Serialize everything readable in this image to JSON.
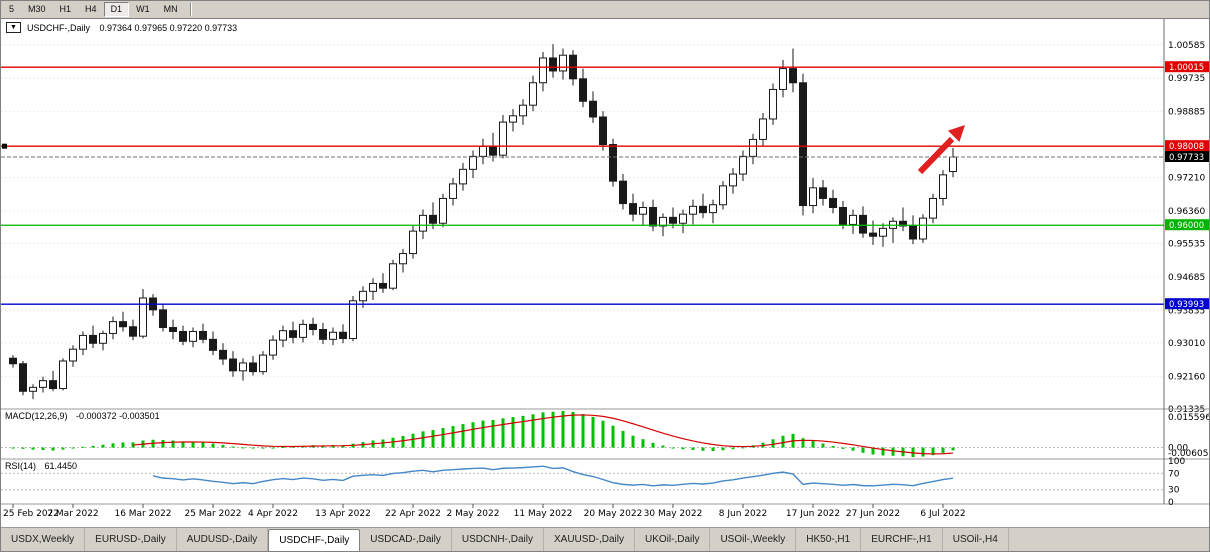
{
  "toolbar": {
    "periods": [
      {
        "label": "5",
        "active": false
      },
      {
        "label": "M30",
        "active": false
      },
      {
        "label": "H1",
        "active": false
      },
      {
        "label": "H4",
        "active": false
      },
      {
        "label": "D1",
        "active": true
      },
      {
        "label": "W1",
        "active": false
      },
      {
        "label": "MN",
        "active": false
      }
    ]
  },
  "chart": {
    "symbol_button": "▼",
    "title": "USDCHF-,Daily",
    "ohlc": "0.97364 0.97965 0.97220 0.97733",
    "price_axis_ticks": [
      "1.00585",
      "0.99735",
      "0.98885",
      "0.97210",
      "0.96360",
      "0.95535",
      "0.94685",
      "0.93835",
      "0.93010",
      "0.92160",
      "0.91335"
    ],
    "hlines": [
      {
        "price": 1.00015,
        "label": "1.00015",
        "color": "#e00000"
      },
      {
        "price": 0.98008,
        "label": "0.98008",
        "color": "#e00000"
      },
      {
        "price": 0.96,
        "label": "0.96000",
        "color": "#00b400"
      },
      {
        "price": 0.93993,
        "label": "0.93993",
        "color": "#0000d0"
      }
    ],
    "current_price": {
      "value": 0.97733,
      "label": "0.97733",
      "box_color": "#000000"
    },
    "trend_arrow_color": "#e02020",
    "view": {
      "price_top": 1.0124,
      "price_bottom": 0.9133
    }
  },
  "chart_data": {
    "type": "candlestick",
    "symbol": "USDCHF-",
    "timeframe": "Daily",
    "ohlc_current": {
      "open": "0.97364",
      "high": "0.97965",
      "low": "0.97220",
      "close": "0.97733"
    },
    "colors": {
      "bull": "#ffffff",
      "bear": "#1a1a1a",
      "outline": "#1a1a1a"
    },
    "candles": [
      [
        0.9262,
        0.927,
        0.9238,
        0.9248
      ],
      [
        0.9248,
        0.9255,
        0.9168,
        0.9178
      ],
      [
        0.9178,
        0.9196,
        0.9158,
        0.9188
      ],
      [
        0.9188,
        0.9215,
        0.9175,
        0.9205
      ],
      [
        0.9205,
        0.923,
        0.9178,
        0.9185
      ],
      [
        0.9185,
        0.9262,
        0.918,
        0.9255
      ],
      [
        0.9255,
        0.9295,
        0.924,
        0.9285
      ],
      [
        0.9285,
        0.933,
        0.927,
        0.932
      ],
      [
        0.932,
        0.9345,
        0.9288,
        0.93
      ],
      [
        0.93,
        0.9332,
        0.9282,
        0.9325
      ],
      [
        0.9325,
        0.9368,
        0.931,
        0.9355
      ],
      [
        0.9355,
        0.938,
        0.933,
        0.9342
      ],
      [
        0.9342,
        0.936,
        0.9308,
        0.9318
      ],
      [
        0.9318,
        0.9438,
        0.9312,
        0.9415
      ],
      [
        0.9415,
        0.9425,
        0.937,
        0.9385
      ],
      [
        0.9385,
        0.94,
        0.933,
        0.934
      ],
      [
        0.934,
        0.936,
        0.931,
        0.933
      ],
      [
        0.933,
        0.9345,
        0.9295,
        0.9305
      ],
      [
        0.9305,
        0.934,
        0.929,
        0.933
      ],
      [
        0.933,
        0.935,
        0.93,
        0.931
      ],
      [
        0.931,
        0.933,
        0.927,
        0.9282
      ],
      [
        0.9282,
        0.93,
        0.9245,
        0.926
      ],
      [
        0.926,
        0.928,
        0.9215,
        0.923
      ],
      [
        0.923,
        0.9262,
        0.9205,
        0.925
      ],
      [
        0.925,
        0.9268,
        0.9218,
        0.9228
      ],
      [
        0.9228,
        0.928,
        0.922,
        0.927
      ],
      [
        0.927,
        0.932,
        0.9258,
        0.9308
      ],
      [
        0.9308,
        0.9345,
        0.929,
        0.9332
      ],
      [
        0.9332,
        0.9355,
        0.93,
        0.9315
      ],
      [
        0.9315,
        0.936,
        0.9302,
        0.9348
      ],
      [
        0.9348,
        0.9365,
        0.932,
        0.9335
      ],
      [
        0.9335,
        0.9352,
        0.9298,
        0.931
      ],
      [
        0.931,
        0.934,
        0.9295,
        0.9328
      ],
      [
        0.9328,
        0.9348,
        0.93,
        0.9312
      ],
      [
        0.9312,
        0.942,
        0.9305,
        0.9408
      ],
      [
        0.9408,
        0.9445,
        0.939,
        0.9432
      ],
      [
        0.9432,
        0.9465,
        0.941,
        0.9452
      ],
      [
        0.9452,
        0.9478,
        0.9428,
        0.944
      ],
      [
        0.944,
        0.9512,
        0.9435,
        0.9502
      ],
      [
        0.9502,
        0.954,
        0.948,
        0.9528
      ],
      [
        0.9528,
        0.9598,
        0.9515,
        0.9585
      ],
      [
        0.9585,
        0.964,
        0.9565,
        0.9625
      ],
      [
        0.9625,
        0.9658,
        0.959,
        0.9605
      ],
      [
        0.9605,
        0.968,
        0.9595,
        0.9668
      ],
      [
        0.9668,
        0.972,
        0.965,
        0.9705
      ],
      [
        0.9705,
        0.9758,
        0.9688,
        0.9742
      ],
      [
        0.9742,
        0.979,
        0.972,
        0.9775
      ],
      [
        0.9775,
        0.982,
        0.9755,
        0.98
      ],
      [
        0.98,
        0.9835,
        0.9762,
        0.9778
      ],
      [
        0.9778,
        0.988,
        0.977,
        0.9862
      ],
      [
        0.9862,
        0.9895,
        0.9838,
        0.9878
      ],
      [
        0.9878,
        0.992,
        0.9855,
        0.9905
      ],
      [
        0.9905,
        0.998,
        0.989,
        0.9962
      ],
      [
        0.9962,
        1.004,
        0.994,
        1.0025
      ],
      [
        1.0025,
        1.006,
        0.9975,
        0.9992
      ],
      [
        0.9992,
        1.0049,
        0.997,
        1.0032
      ],
      [
        1.0032,
        1.0045,
        0.9955,
        0.9972
      ],
      [
        0.9972,
        0.9998,
        0.99,
        0.9915
      ],
      [
        0.9915,
        0.994,
        0.986,
        0.9875
      ],
      [
        0.9875,
        0.989,
        0.979,
        0.9805
      ],
      [
        0.9805,
        0.982,
        0.9698,
        0.9712
      ],
      [
        0.9712,
        0.973,
        0.964,
        0.9655
      ],
      [
        0.9655,
        0.968,
        0.961,
        0.9628
      ],
      [
        0.9628,
        0.966,
        0.96,
        0.9645
      ],
      [
        0.9645,
        0.9665,
        0.9585,
        0.9598
      ],
      [
        0.9598,
        0.963,
        0.9572,
        0.962
      ],
      [
        0.962,
        0.9645,
        0.9592,
        0.9605
      ],
      [
        0.9605,
        0.964,
        0.958,
        0.9628
      ],
      [
        0.9628,
        0.9665,
        0.9602,
        0.9648
      ],
      [
        0.9648,
        0.968,
        0.9618,
        0.9632
      ],
      [
        0.9632,
        0.9665,
        0.9605,
        0.9652
      ],
      [
        0.9652,
        0.9712,
        0.964,
        0.97
      ],
      [
        0.97,
        0.9745,
        0.968,
        0.973
      ],
      [
        0.973,
        0.979,
        0.9712,
        0.9775
      ],
      [
        0.9775,
        0.9832,
        0.9755,
        0.9818
      ],
      [
        0.9818,
        0.9885,
        0.98,
        0.987
      ],
      [
        0.987,
        0.996,
        0.9855,
        0.9945
      ],
      [
        0.9945,
        1.002,
        0.9925,
        0.9998
      ],
      [
        0.9998,
        1.0049,
        0.9938,
        0.9962
      ],
      [
        0.9962,
        0.9985,
        0.9625,
        0.965
      ],
      [
        0.965,
        0.972,
        0.963,
        0.9695
      ],
      [
        0.9695,
        0.9715,
        0.965,
        0.9668
      ],
      [
        0.9668,
        0.969,
        0.963,
        0.9645
      ],
      [
        0.9645,
        0.9662,
        0.959,
        0.9602
      ],
      [
        0.9602,
        0.964,
        0.9578,
        0.9625
      ],
      [
        0.9625,
        0.9648,
        0.9568,
        0.958
      ],
      [
        0.958,
        0.9612,
        0.955,
        0.9572
      ],
      [
        0.9572,
        0.9605,
        0.9545,
        0.9592
      ],
      [
        0.9592,
        0.962,
        0.9555,
        0.961
      ],
      [
        0.961,
        0.9645,
        0.9585,
        0.9598
      ],
      [
        0.9598,
        0.9625,
        0.9552,
        0.9565
      ],
      [
        0.9565,
        0.9628,
        0.9555,
        0.9618
      ],
      [
        0.9618,
        0.968,
        0.9605,
        0.9668
      ],
      [
        0.9668,
        0.974,
        0.965,
        0.9728
      ],
      [
        0.97364,
        0.97965,
        0.9722,
        0.97733
      ]
    ],
    "date_labels": [
      {
        "i": 0,
        "text": "25 Feb 2022"
      },
      {
        "i": 6,
        "text": "7 Mar 2022"
      },
      {
        "i": 13,
        "text": "16 Mar 2022"
      },
      {
        "i": 20,
        "text": "25 Mar 2022"
      },
      {
        "i": 26,
        "text": "4 Apr 2022"
      },
      {
        "i": 33,
        "text": "13 Apr 2022"
      },
      {
        "i": 40,
        "text": "22 Apr 2022"
      },
      {
        "i": 46,
        "text": "2 May 2022"
      },
      {
        "i": 53,
        "text": "11 May 2022"
      },
      {
        "i": 60,
        "text": "20 May 2022"
      },
      {
        "i": 66,
        "text": "30 May 2022"
      },
      {
        "i": 73,
        "text": "8 Jun 2022"
      },
      {
        "i": 80,
        "text": "17 Jun 2022"
      },
      {
        "i": 86,
        "text": "27 Jun 2022"
      },
      {
        "i": 93,
        "text": "6 Jul 2022"
      }
    ]
  },
  "macd": {
    "name": "MACD(12,26,9)",
    "values": "-0.000372 -0.003501",
    "axis_top": "0.015596",
    "axis_zero": "0.00",
    "axis_bottom": "-0.006055",
    "histogram_color": "#00c000",
    "signal_color": "#d40000"
  },
  "rsi": {
    "name": "RSI(14)",
    "value": "61.4450",
    "period": 14,
    "levels": [
      "100",
      "70",
      "30",
      "0"
    ],
    "line_color": "#4587c7"
  },
  "tabs": {
    "active": "USDCHF-,Daily",
    "items": [
      "USDX,Weekly",
      "EURUSD-,Daily",
      "AUDUSD-,Daily",
      "USDCHF-,Daily",
      "USDCAD-,Daily",
      "USDCNH-,Daily",
      "XAUUSD-,Daily",
      "UKOil-,Daily",
      "USOil-,Weekly",
      "HK50-,H1",
      "EURCHF-,H1",
      "USOil-,H4"
    ]
  }
}
